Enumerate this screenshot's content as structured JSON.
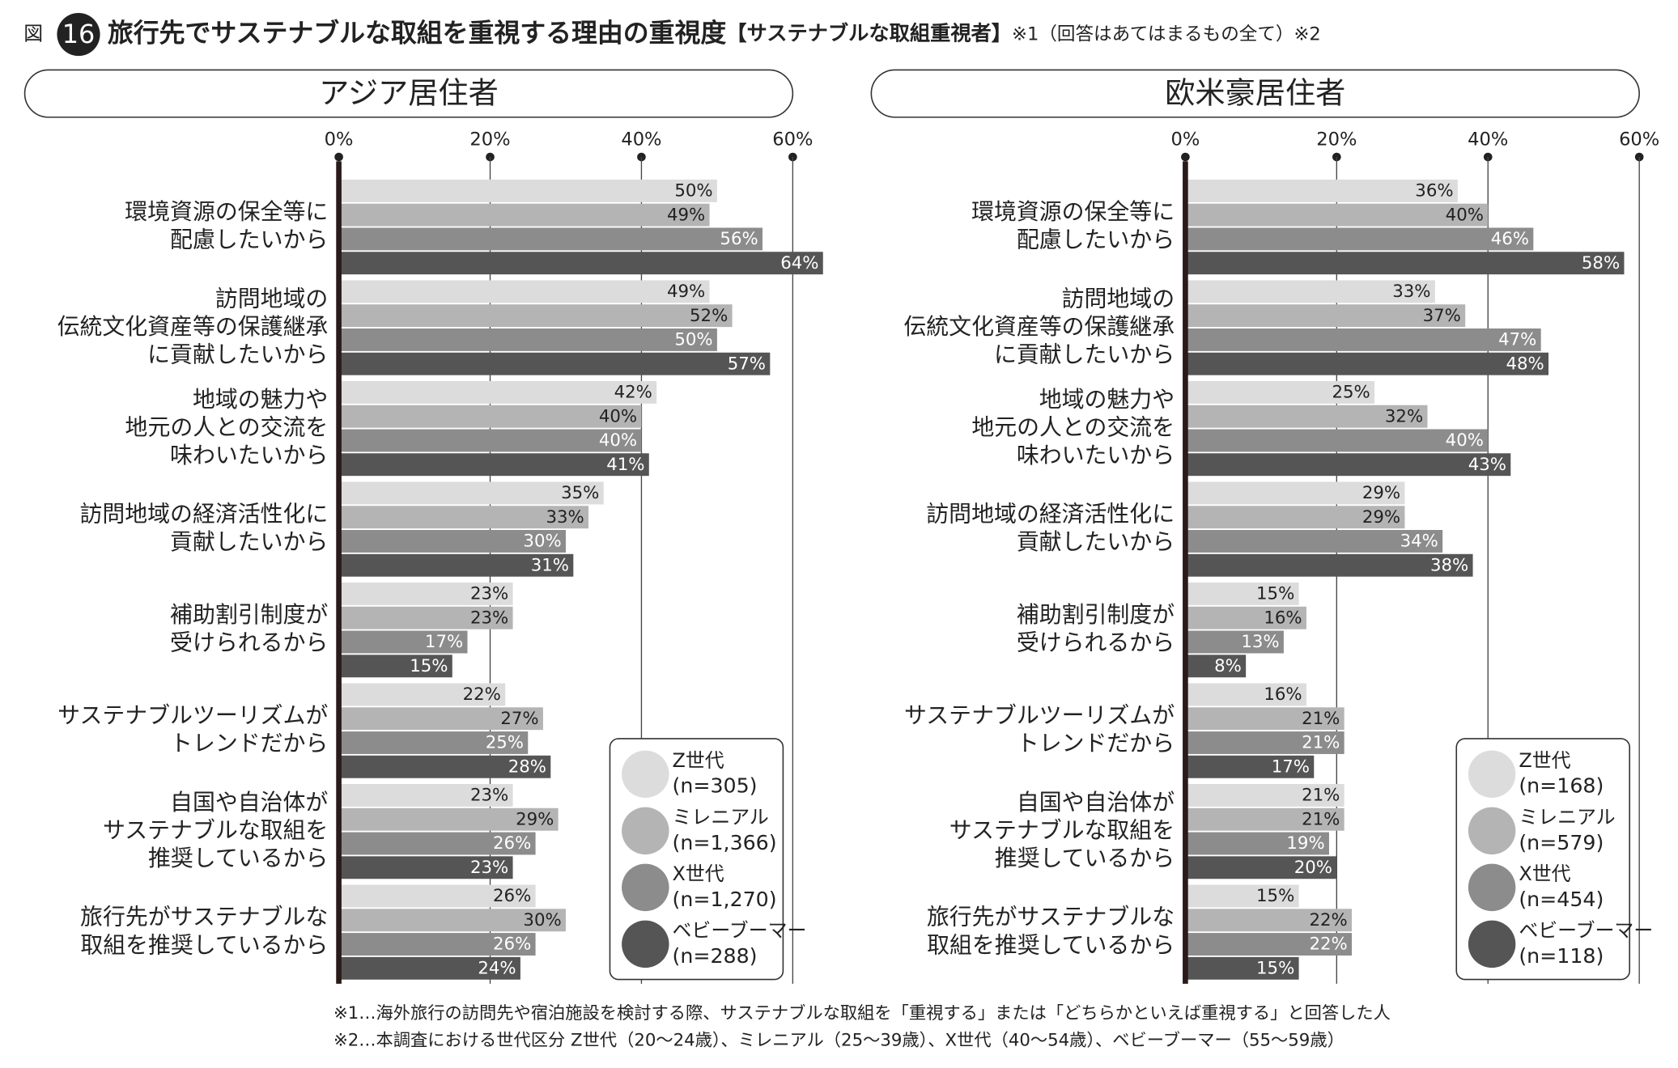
{
  "header": {
    "fig_label": "図",
    "fig_number": "16",
    "title": "旅行先でサステナブルな取組を重視する理由の重視度",
    "title_bracket": "【サステナブルな取組重視者】",
    "title_note": "※1（回答はあてはまるもの全て）※2"
  },
  "chart_data": [
    {
      "type": "hbar",
      "title": "アジア居住者",
      "categories": [
        [
          "環境資源の保全等に",
          "配慮したいから"
        ],
        [
          "訪問地域の",
          "伝統文化資産等の保護継承",
          "に貢献したいから"
        ],
        [
          "地域の魅力や",
          "地元の人との交流を",
          "味わいたいから"
        ],
        [
          "訪問地域の経済活性化に",
          "貢献したいから"
        ],
        [
          "補助割引制度が",
          "受けられるから"
        ],
        [
          "サステナブルツーリズムが",
          "トレンドだから"
        ],
        [
          "自国や自治体が",
          "サステナブルな取組を",
          "推奨しているから"
        ],
        [
          "旅行先がサステナブルな",
          "取組を推奨しているから"
        ]
      ],
      "series": [
        {
          "name": "Z世代",
          "n": "(n=305)",
          "color": "#dcdcdc",
          "label_color": "#222",
          "values": [
            50,
            49,
            42,
            35,
            23,
            22,
            23,
            26
          ],
          "value_labels": [
            "50%",
            "49%",
            "42%",
            "35%",
            "23%",
            "22%",
            "23%",
            "26%"
          ]
        },
        {
          "name": "ミレニアル",
          "n": "(n=1,366)",
          "color": "#b4b4b4",
          "label_color": "#222",
          "values": [
            49,
            52,
            40,
            33,
            23,
            27,
            29,
            30
          ],
          "value_labels": [
            "49%",
            "52%",
            "40%",
            "33%",
            "23%",
            "27%",
            "29%",
            "30%"
          ]
        },
        {
          "name": "X世代",
          "n": "(n=1,270)",
          "color": "#8c8c8c",
          "label_color": "#fff",
          "values": [
            56,
            50,
            40,
            30,
            17,
            25,
            26,
            26
          ],
          "value_labels": [
            "56%",
            "50%",
            "40%",
            "30%",
            "17%",
            "25%",
            "26%",
            "26%"
          ]
        },
        {
          "name": "ベビーブーマー",
          "n": "(n=288)",
          "color": "#555555",
          "label_color": "#fff",
          "values": [
            64,
            57,
            41,
            31,
            15,
            28,
            23,
            24
          ],
          "value_labels": [
            "64%",
            "57%",
            "41%",
            "31%",
            "15%",
            "28%",
            "23%",
            "24%"
          ]
        }
      ],
      "xlim": [
        0,
        60
      ],
      "xticks": [
        {
          "value": 0,
          "label": "0%"
        },
        {
          "value": 20,
          "label": "20%"
        },
        {
          "value": 40,
          "label": "40%"
        },
        {
          "value": 60,
          "label": "60%"
        }
      ],
      "grid": true,
      "legend": "lower right"
    },
    {
      "type": "hbar",
      "title": "欧米豪居住者",
      "categories": [
        [
          "環境資源の保全等に",
          "配慮したいから"
        ],
        [
          "訪問地域の",
          "伝統文化資産等の保護継承",
          "に貢献したいから"
        ],
        [
          "地域の魅力や",
          "地元の人との交流を",
          "味わいたいから"
        ],
        [
          "訪問地域の経済活性化に",
          "貢献したいから"
        ],
        [
          "補助割引制度が",
          "受けられるから"
        ],
        [
          "サステナブルツーリズムが",
          "トレンドだから"
        ],
        [
          "自国や自治体が",
          "サステナブルな取組を",
          "推奨しているから"
        ],
        [
          "旅行先がサステナブルな",
          "取組を推奨しているから"
        ]
      ],
      "series": [
        {
          "name": "Z世代",
          "n": "(n=168)",
          "color": "#dcdcdc",
          "label_color": "#222",
          "values": [
            36,
            33,
            25,
            29,
            15,
            16,
            21,
            15
          ],
          "value_labels": [
            "36%",
            "33%",
            "25%",
            "29%",
            "15%",
            "16%",
            "21%",
            "15%"
          ]
        },
        {
          "name": "ミレニアル",
          "n": "(n=579)",
          "color": "#b4b4b4",
          "label_color": "#222",
          "values": [
            40,
            37,
            32,
            29,
            16,
            21,
            21,
            22
          ],
          "value_labels": [
            "40%",
            "37%",
            "32%",
            "29%",
            "16%",
            "21%",
            "21%",
            "22%"
          ]
        },
        {
          "name": "X世代",
          "n": "(n=454)",
          "color": "#8c8c8c",
          "label_color": "#fff",
          "values": [
            46,
            47,
            40,
            34,
            13,
            21,
            19,
            22
          ],
          "value_labels": [
            "46%",
            "47%",
            "40%",
            "34%",
            "13%",
            "21%",
            "19%",
            "22%"
          ]
        },
        {
          "name": "ベビーブーマー",
          "n": "(n=118)",
          "color": "#555555",
          "label_color": "#fff",
          "values": [
            58,
            48,
            43,
            38,
            8,
            17,
            20,
            15
          ],
          "value_labels": [
            "58%",
            "48%",
            "43%",
            "38%",
            "8%",
            "17%",
            "20%",
            "15%"
          ]
        }
      ],
      "xlim": [
        0,
        60
      ],
      "xticks": [
        {
          "value": 0,
          "label": "0%"
        },
        {
          "value": 20,
          "label": "20%"
        },
        {
          "value": 40,
          "label": "40%"
        },
        {
          "value": 60,
          "label": "60%"
        }
      ],
      "grid": true,
      "legend": "lower right"
    }
  ],
  "footnotes": [
    "※1…海外旅行の訪問先や宿泊施設を検討する際、サステナブルな取組を「重視する」または「どちらかといえば重視する」と回答した人",
    "※2…本調査における世代区分 Z世代（20〜24歳）、ミレニアル（25〜39歳）、X世代（40〜54歳）、ベビーブーマー（55〜59歳）"
  ]
}
